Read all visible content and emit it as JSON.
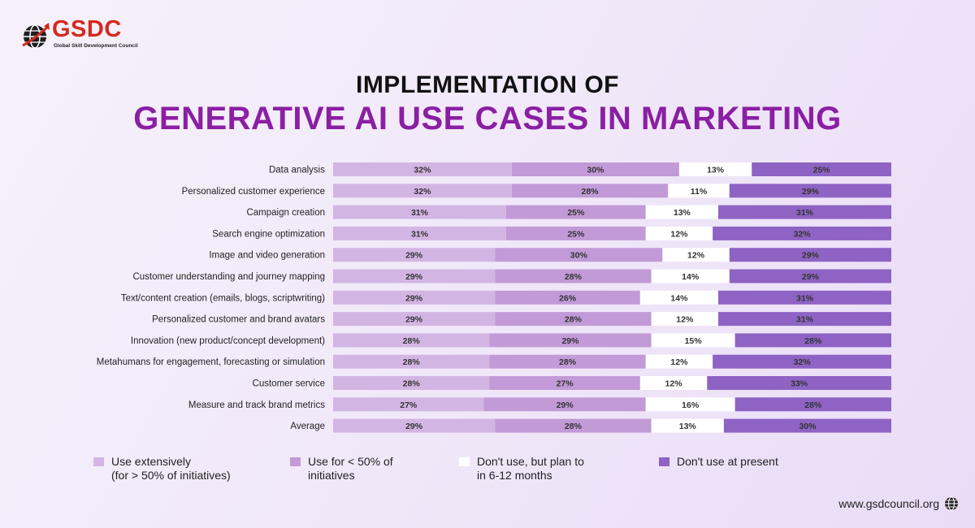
{
  "brand": {
    "name": "GSDC",
    "subtitle": "Global Skill Development Council"
  },
  "title_line1": "IMPLEMENTATION OF",
  "title_line2": "GENERATIVE AI USE CASES IN MARKETING",
  "footer": {
    "url": "www.gsdcouncil.org"
  },
  "chart_data": {
    "type": "bar",
    "orientation": "horizontal-stacked-100",
    "categories": [
      "Data analysis",
      "Personalized customer experience",
      "Campaign creation",
      "Search engine optimization",
      "Image and video generation",
      "Customer understanding and journey mapping",
      "Text/content creation (emails, blogs, scriptwriting)",
      "Personalized customer and brand avatars",
      "Innovation (new product/concept development)",
      "Metahumans for engagement, forecasting or simulation",
      "Customer service",
      "Measure and track brand metrics",
      "Average"
    ],
    "series": [
      {
        "name": "Use extensively\n(for > 50% of initiatives)",
        "color": "#d3b5e4",
        "values": [
          32,
          32,
          31,
          31,
          29,
          29,
          29,
          29,
          28,
          28,
          28,
          27,
          29
        ]
      },
      {
        "name": "Use for < 50% of\ninitiatives",
        "color": "#c29ad7",
        "values": [
          30,
          28,
          25,
          25,
          30,
          28,
          26,
          28,
          29,
          28,
          27,
          29,
          28
        ]
      },
      {
        "name": "Don't use, but plan to\nin 6-12 months",
        "color": "#ffffff",
        "values": [
          13,
          11,
          13,
          12,
          12,
          14,
          14,
          12,
          15,
          12,
          12,
          16,
          13
        ]
      },
      {
        "name": "Don't use at present",
        "color": "#8e63c4",
        "values": [
          25,
          29,
          31,
          32,
          29,
          29,
          31,
          31,
          28,
          32,
          33,
          28,
          30
        ]
      }
    ],
    "value_suffix": "%",
    "xlim": [
      0,
      100
    ]
  }
}
